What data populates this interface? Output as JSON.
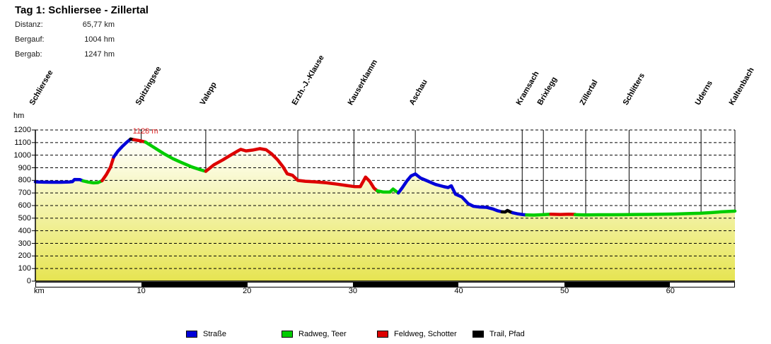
{
  "header": {
    "title": "Tag 1: Schliersee - Zillertal"
  },
  "stats": [
    {
      "label": "Distanz:",
      "value": "65,77 km"
    },
    {
      "label": "Bergauf:",
      "value": "1004 hm"
    },
    {
      "label": "Bergab:",
      "value": "1247 hm"
    }
  ],
  "legend": [
    {
      "label": "Straße",
      "surface": "strasse"
    },
    {
      "label": "Radweg, Teer",
      "surface": "radweg"
    },
    {
      "label": "Feldweg, Schotter",
      "surface": "feldweg"
    },
    {
      "label": "Trail, Pfad",
      "surface": "trail"
    }
  ],
  "colors": {
    "strasse": "#0000d8",
    "radweg": "#00cc00",
    "feldweg": "#dd0000",
    "trail": "#000000",
    "grid": "#000000",
    "peak_label": "#dd2222",
    "area_top": "#ffffff",
    "area_mid": "#f4f4b0",
    "area_bottom": "#e6e452"
  },
  "chart_data": {
    "type": "area",
    "title": "Tag 1: Schliersee - Zillertal",
    "xlabel": "km",
    "ylabel": "hm",
    "xlim": [
      0,
      66.1
    ],
    "ylim": [
      0,
      1200
    ],
    "y_tick_step": 100,
    "x_ticks": [
      10,
      20,
      30,
      40,
      50,
      60
    ],
    "grid": "dashed-horizontal",
    "legend_position": "bottom",
    "peak_annotation": {
      "text": "1128 m",
      "km": 9.2
    },
    "locations": [
      {
        "name": "Schliersee",
        "km": 0.0,
        "hm": 788
      },
      {
        "name": "Spitzingsee",
        "km": 10.0,
        "hm": 1108
      },
      {
        "name": "Valepp",
        "km": 16.1,
        "hm": 872
      },
      {
        "name": "Erzh.-J.-Klause",
        "km": 24.8,
        "hm": 800
      },
      {
        "name": "Kauserklamm",
        "km": 30.1,
        "hm": 751
      },
      {
        "name": "Aschau",
        "km": 35.9,
        "hm": 851
      },
      {
        "name": "Kramsach",
        "km": 46.0,
        "hm": 527
      },
      {
        "name": "Brixlegg",
        "km": 48.0,
        "hm": 530
      },
      {
        "name": "Zillertal",
        "km": 52.0,
        "hm": 527
      },
      {
        "name": "Schlitters",
        "km": 56.1,
        "hm": 528
      },
      {
        "name": "Uderns",
        "km": 62.9,
        "hm": 540
      },
      {
        "name": "Kaltenbach",
        "km": 66.1,
        "hm": 556
      }
    ],
    "segments": [
      {
        "surface": "strasse",
        "points": [
          [
            0,
            788
          ],
          [
            0.8,
            786
          ],
          [
            1.6,
            785
          ],
          [
            2.4,
            785
          ],
          [
            3.2,
            787
          ],
          [
            3.5,
            790
          ],
          [
            3.7,
            807
          ],
          [
            4.2,
            806
          ],
          [
            4.5,
            796
          ]
        ]
      },
      {
        "surface": "radweg",
        "points": [
          [
            4.5,
            796
          ],
          [
            5.0,
            786
          ],
          [
            5.5,
            780
          ],
          [
            5.9,
            782
          ],
          [
            6.3,
            797
          ]
        ]
      },
      {
        "surface": "feldweg",
        "points": [
          [
            6.3,
            797
          ],
          [
            6.7,
            845
          ],
          [
            7.1,
            905
          ],
          [
            7.4,
            985
          ]
        ]
      },
      {
        "surface": "strasse",
        "points": [
          [
            7.4,
            985
          ],
          [
            7.8,
            1032
          ],
          [
            8.2,
            1068
          ],
          [
            8.6,
            1100
          ],
          [
            9.0,
            1128
          ]
        ]
      },
      {
        "surface": "trail",
        "points": [
          [
            9.0,
            1128
          ],
          [
            9.3,
            1123
          ]
        ]
      },
      {
        "surface": "feldweg",
        "points": [
          [
            9.3,
            1123
          ],
          [
            9.8,
            1116
          ],
          [
            10.4,
            1104
          ]
        ]
      },
      {
        "surface": "radweg",
        "points": [
          [
            10.4,
            1104
          ],
          [
            11.2,
            1062
          ],
          [
            12.1,
            1014
          ],
          [
            13.0,
            972
          ],
          [
            13.9,
            938
          ],
          [
            14.8,
            906
          ],
          [
            15.6,
            884
          ],
          [
            16.1,
            872
          ]
        ]
      },
      {
        "surface": "feldweg",
        "points": [
          [
            16.1,
            872
          ],
          [
            16.9,
            925
          ],
          [
            17.7,
            962
          ],
          [
            18.4,
            998
          ],
          [
            19.1,
            1032
          ],
          [
            19.4,
            1046
          ],
          [
            19.9,
            1034
          ],
          [
            20.5,
            1040
          ],
          [
            21.2,
            1052
          ],
          [
            21.8,
            1043
          ],
          [
            22.3,
            1012
          ],
          [
            22.9,
            962
          ],
          [
            23.4,
            908
          ],
          [
            23.8,
            852
          ],
          [
            24.3,
            840
          ],
          [
            24.8,
            800
          ],
          [
            25.5,
            793
          ],
          [
            26.5,
            788
          ],
          [
            27.5,
            781
          ],
          [
            28.5,
            770
          ],
          [
            29.4,
            759
          ],
          [
            30.1,
            751
          ],
          [
            30.7,
            750
          ],
          [
            31.2,
            826
          ],
          [
            31.6,
            792
          ],
          [
            32.0,
            738
          ],
          [
            32.3,
            717
          ]
        ]
      },
      {
        "surface": "radweg",
        "points": [
          [
            32.3,
            717
          ],
          [
            32.9,
            707
          ],
          [
            33.5,
            707
          ],
          [
            33.8,
            731
          ],
          [
            34.1,
            712
          ],
          [
            34.3,
            700
          ]
        ]
      },
      {
        "surface": "strasse",
        "points": [
          [
            34.3,
            700
          ],
          [
            34.7,
            745
          ],
          [
            35.1,
            795
          ],
          [
            35.5,
            835
          ],
          [
            35.9,
            851
          ],
          [
            36.4,
            818
          ],
          [
            37.0,
            797
          ],
          [
            37.8,
            768
          ],
          [
            38.6,
            750
          ],
          [
            39.0,
            743
          ],
          [
            39.3,
            757
          ],
          [
            39.7,
            690
          ],
          [
            40.3,
            668
          ],
          [
            40.9,
            615
          ],
          [
            41.4,
            594
          ],
          [
            42.0,
            588
          ],
          [
            42.6,
            586
          ],
          [
            43.2,
            574
          ],
          [
            43.7,
            558
          ],
          [
            44.1,
            550
          ]
        ]
      },
      {
        "surface": "trail",
        "points": [
          [
            44.1,
            550
          ],
          [
            44.4,
            549
          ],
          [
            44.6,
            561
          ],
          [
            44.9,
            549
          ],
          [
            45.1,
            543
          ]
        ]
      },
      {
        "surface": "strasse",
        "points": [
          [
            45.1,
            543
          ],
          [
            45.6,
            534
          ],
          [
            46.1,
            528
          ],
          [
            46.4,
            526
          ]
        ]
      },
      {
        "surface": "radweg",
        "points": [
          [
            46.4,
            526
          ],
          [
            47.1,
            524
          ],
          [
            47.8,
            527
          ],
          [
            48.4,
            530
          ],
          [
            48.7,
            531
          ]
        ]
      },
      {
        "surface": "feldweg",
        "points": [
          [
            48.7,
            531
          ],
          [
            49.6,
            529
          ],
          [
            50.4,
            531
          ],
          [
            51.0,
            530
          ]
        ]
      },
      {
        "surface": "radweg",
        "points": [
          [
            51.0,
            528
          ],
          [
            52.0,
            526
          ],
          [
            53.2,
            527
          ],
          [
            54.4,
            527
          ],
          [
            55.6,
            528
          ],
          [
            56.8,
            529
          ],
          [
            58.0,
            530
          ],
          [
            59.2,
            531
          ],
          [
            60.4,
            533
          ],
          [
            61.6,
            536
          ],
          [
            62.8,
            539
          ],
          [
            63.8,
            544
          ],
          [
            64.8,
            550
          ],
          [
            65.6,
            554
          ],
          [
            66.1,
            556
          ]
        ]
      }
    ],
    "scalebar_blocks": [
      {
        "from": 0,
        "to": 10,
        "color": "white"
      },
      {
        "from": 10,
        "to": 20,
        "color": "black"
      },
      {
        "from": 20,
        "to": 30,
        "color": "white"
      },
      {
        "from": 30,
        "to": 40,
        "color": "black"
      },
      {
        "from": 40,
        "to": 50,
        "color": "white"
      },
      {
        "from": 50,
        "to": 60,
        "color": "black"
      },
      {
        "from": 60,
        "to": 66.1,
        "color": "white"
      }
    ]
  }
}
